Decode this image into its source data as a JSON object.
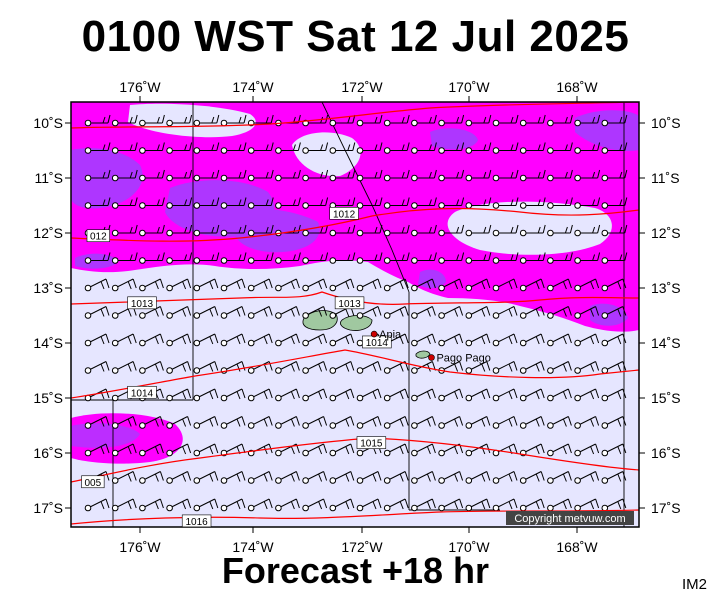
{
  "title": "0100 WST Sat 12 Jul 2025",
  "footer": "Forecast +18 hr",
  "product_code": "IM2",
  "copyright": "Copyright metvuw.com",
  "colors": {
    "sea_background": "#e6e6ff",
    "rain_light": "#ff00ff",
    "rain_heavy": "#a040ff",
    "isobar": "#ff0000",
    "wind_barb": "#000000",
    "place_marker": "#cc0000",
    "land": "#a0c8a0"
  },
  "map": {
    "lon_ticks": [
      "176˚W",
      "174˚W",
      "172˚W",
      "170˚W",
      "168˚W"
    ],
    "lat_ticks": [
      "10˚S",
      "11˚S",
      "12˚S",
      "13˚S",
      "14˚S",
      "15˚S",
      "16˚S",
      "17˚S"
    ],
    "extent": {
      "lon_west": -177.3,
      "lon_east": -166.9,
      "lat_north": -9.7,
      "lat_south": -17.3
    },
    "isobars": [
      {
        "label": "1012",
        "lon": -172.3,
        "lat": -11.7
      },
      {
        "label": "012",
        "lon": -176.8,
        "lat": -12.1
      },
      {
        "label": "1013",
        "lon": -176.0,
        "lat": -13.3
      },
      {
        "label": "1013",
        "lon": -172.2,
        "lat": -13.3
      },
      {
        "label": "1014",
        "lon": -171.7,
        "lat": -14.0
      },
      {
        "label": "1014",
        "lon": -176.0,
        "lat": -14.9
      },
      {
        "label": "1015",
        "lon": -171.8,
        "lat": -15.8
      },
      {
        "label": "005",
        "lon": -176.9,
        "lat": -16.5
      },
      {
        "label": "1016",
        "lon": -175.0,
        "lat": -17.2
      }
    ],
    "places": [
      {
        "name": "Apia",
        "lon": -171.75,
        "lat": -13.85
      },
      {
        "name": "Pago Pago",
        "lon": -170.7,
        "lat": -14.27
      }
    ]
  }
}
